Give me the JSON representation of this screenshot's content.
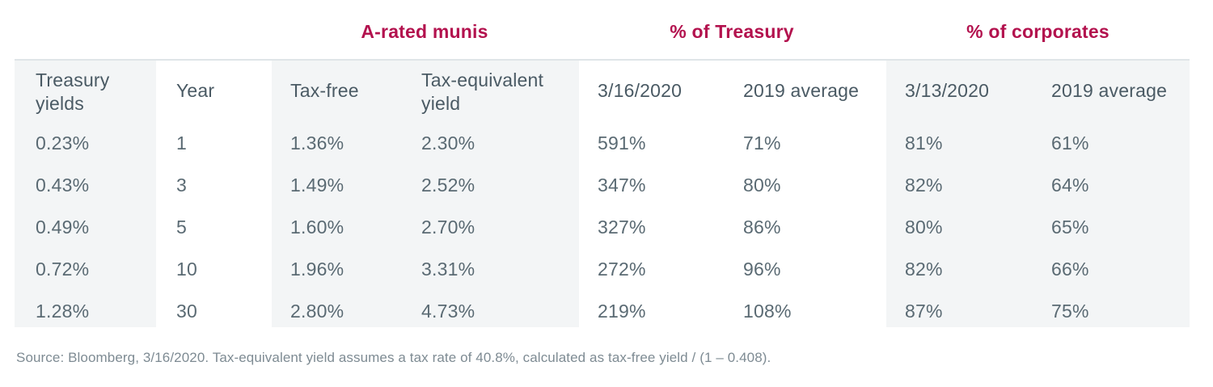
{
  "group_headers": {
    "munis": "A-rated munis",
    "treasury": "% of Treasury",
    "corporates": "% of corporates"
  },
  "columns": {
    "treasury_yields": [
      "Treasury",
      "yields"
    ],
    "year": "Year",
    "tax_free": "Tax-free",
    "tax_equivalent": [
      "Tax-equivalent",
      "yield"
    ],
    "treasury_date": "3/16/2020",
    "treasury_avg": "2019 average",
    "corp_date": "3/13/2020",
    "corp_avg": "2019 average"
  },
  "rows": [
    {
      "treasury_yield": "0.23%",
      "year": "1",
      "tax_free": "1.36%",
      "tax_equivalent": "2.30%",
      "pct_treasury_date": "591%",
      "pct_treasury_avg": "71%",
      "pct_corp_date": "81%",
      "pct_corp_avg": "61%"
    },
    {
      "treasury_yield": "0.43%",
      "year": "3",
      "tax_free": "1.49%",
      "tax_equivalent": "2.52%",
      "pct_treasury_date": "347%",
      "pct_treasury_avg": "80%",
      "pct_corp_date": "82%",
      "pct_corp_avg": "64%"
    },
    {
      "treasury_yield": "0.49%",
      "year": "5",
      "tax_free": "1.60%",
      "tax_equivalent": "2.70%",
      "pct_treasury_date": "327%",
      "pct_treasury_avg": "86%",
      "pct_corp_date": "80%",
      "pct_corp_avg": "65%"
    },
    {
      "treasury_yield": "0.72%",
      "year": "10",
      "tax_free": "1.96%",
      "tax_equivalent": "3.31%",
      "pct_treasury_date": "272%",
      "pct_treasury_avg": "96%",
      "pct_corp_date": "82%",
      "pct_corp_avg": "66%"
    },
    {
      "treasury_yield": "1.28%",
      "year": "30",
      "tax_free": "2.80%",
      "tax_equivalent": "4.73%",
      "pct_treasury_date": "219%",
      "pct_treasury_avg": "108%",
      "pct_corp_date": "87%",
      "pct_corp_avg": "75%"
    }
  ],
  "source": "Source: Bloomberg, 3/16/2020. Tax-equivalent yield assumes a tax rate of 40.8%, calculated as tax-free yield / (1 – 0.408).",
  "colors": {
    "accent": "#b3124e",
    "text": "#4a5a64",
    "shade": "#f3f5f6",
    "rule": "#dfe5e8"
  }
}
